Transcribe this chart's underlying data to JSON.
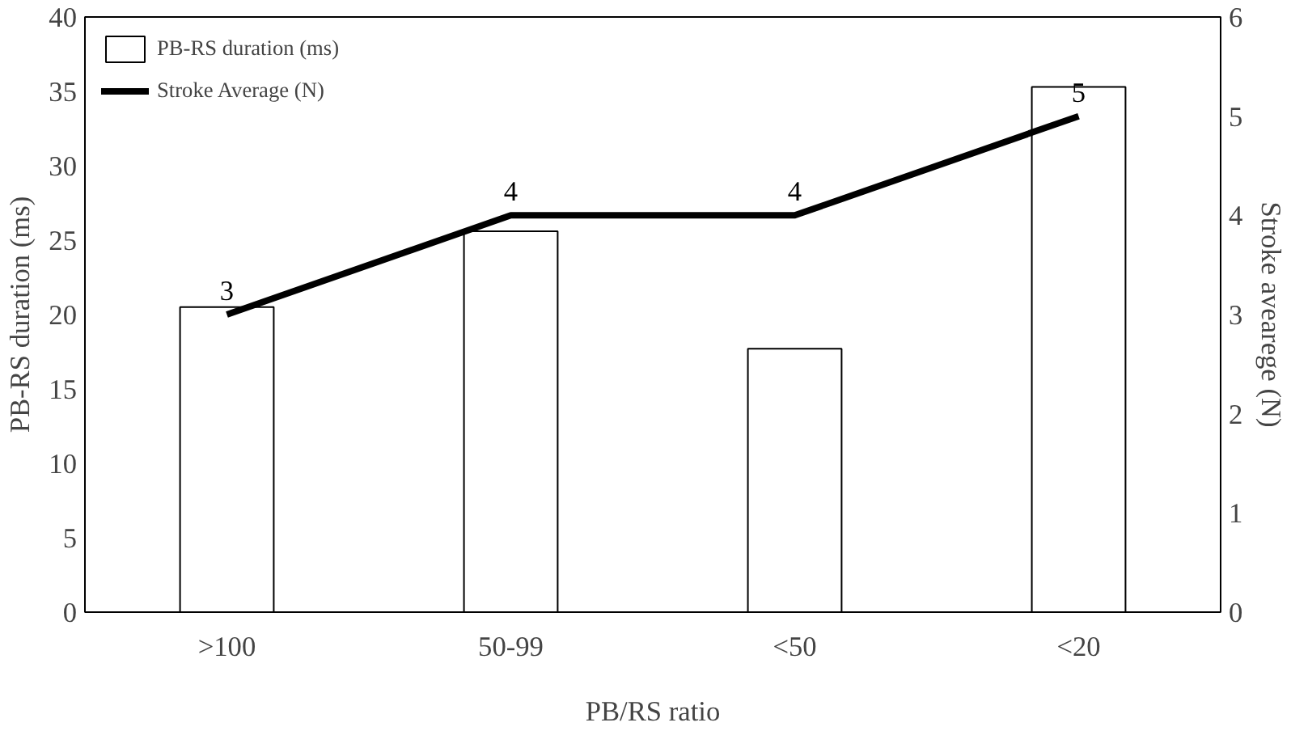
{
  "chart_data": {
    "type": "bar",
    "xlabel": "PB/RS ratio",
    "ylabel": "PB-RS duration (ms)",
    "y2label": "Stroke avearege (N)",
    "categories": [
      ">100",
      "50-99",
      "<50",
      "<20"
    ],
    "series": [
      {
        "name": "PB-RS duration (ms)",
        "color": "#ffffff",
        "values": [
          20.5,
          25.6,
          17.7,
          35.3
        ]
      },
      {
        "name": "Stroke Average (N)",
        "type": "line",
        "axis": "y2",
        "color": "#000000",
        "values": [
          3,
          4,
          4,
          5
        ],
        "value_labels": [
          "3",
          "4",
          "4",
          "5"
        ]
      }
    ],
    "ylim": [
      0,
      40
    ],
    "yticks": [
      0,
      5,
      10,
      15,
      20,
      25,
      30,
      35,
      40
    ],
    "y2lim": [
      0,
      6
    ],
    "y2ticks": [
      0,
      1,
      2,
      3,
      4,
      5,
      6
    ],
    "grid": false,
    "legend": "top left",
    "line_style": "solid",
    "marker": "none"
  }
}
